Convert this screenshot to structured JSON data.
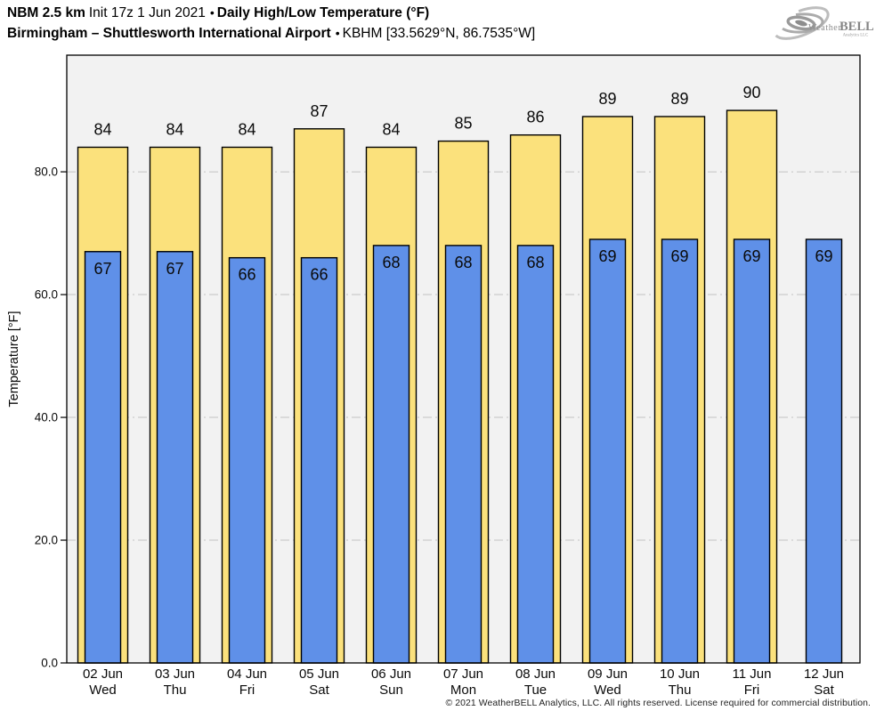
{
  "header": {
    "line1": {
      "model": "NBM 2.5 km",
      "init": "Init 17z 1 Jun 2021",
      "bullet": "•",
      "product": "Daily High/Low Temperature (°F)"
    },
    "line2": {
      "station": "Birmingham – Shuttlesworth International Airport",
      "bullet": "•",
      "station_id": "KBHM [33.5629°N, 86.7535°W]"
    }
  },
  "logo": {
    "word_weather": "Weather",
    "word_bell": "BELL",
    "subtext": "Analytics LLC"
  },
  "chart_data": {
    "type": "bar",
    "title": "Daily High/Low Temperature (°F)",
    "categories": [
      "02 Jun",
      "03 Jun",
      "04 Jun",
      "05 Jun",
      "06 Jun",
      "07 Jun",
      "08 Jun",
      "09 Jun",
      "10 Jun",
      "11 Jun",
      "12 Jun"
    ],
    "weekdays": [
      "Wed",
      "Thu",
      "Fri",
      "Sat",
      "Sun",
      "Mon",
      "Tue",
      "Wed",
      "Thu",
      "Fri",
      "Sat"
    ],
    "series": [
      {
        "name": "High",
        "color": "#FBE17C",
        "edge": "#000000",
        "values": [
          84,
          84,
          84,
          87,
          84,
          85,
          86,
          89,
          89,
          90,
          null
        ]
      },
      {
        "name": "Low",
        "color": "#5F90E8",
        "edge": "#000000",
        "values": [
          67,
          67,
          66,
          66,
          68,
          68,
          68,
          69,
          69,
          69,
          69
        ]
      }
    ],
    "xlabel": "",
    "ylabel": "Temperature [°F]",
    "ylim": [
      0,
      99
    ],
    "yticks": [
      {
        "value": 0,
        "label": "0.0"
      },
      {
        "value": 20,
        "label": "20.0"
      },
      {
        "value": 40,
        "label": "40.0"
      },
      {
        "value": 60,
        "label": "60.0"
      },
      {
        "value": 80,
        "label": "80.0"
      }
    ],
    "grid": {
      "values": [
        20,
        40,
        60,
        80
      ],
      "style": "dash-dot",
      "color": "#c3c3c3"
    },
    "plot_bg": "#f2f2f2",
    "legend": "none"
  },
  "footer": {
    "copyright": "© 2021 WeatherBELL Analytics, LLC. All rights reserved. License required for commercial distribution."
  }
}
